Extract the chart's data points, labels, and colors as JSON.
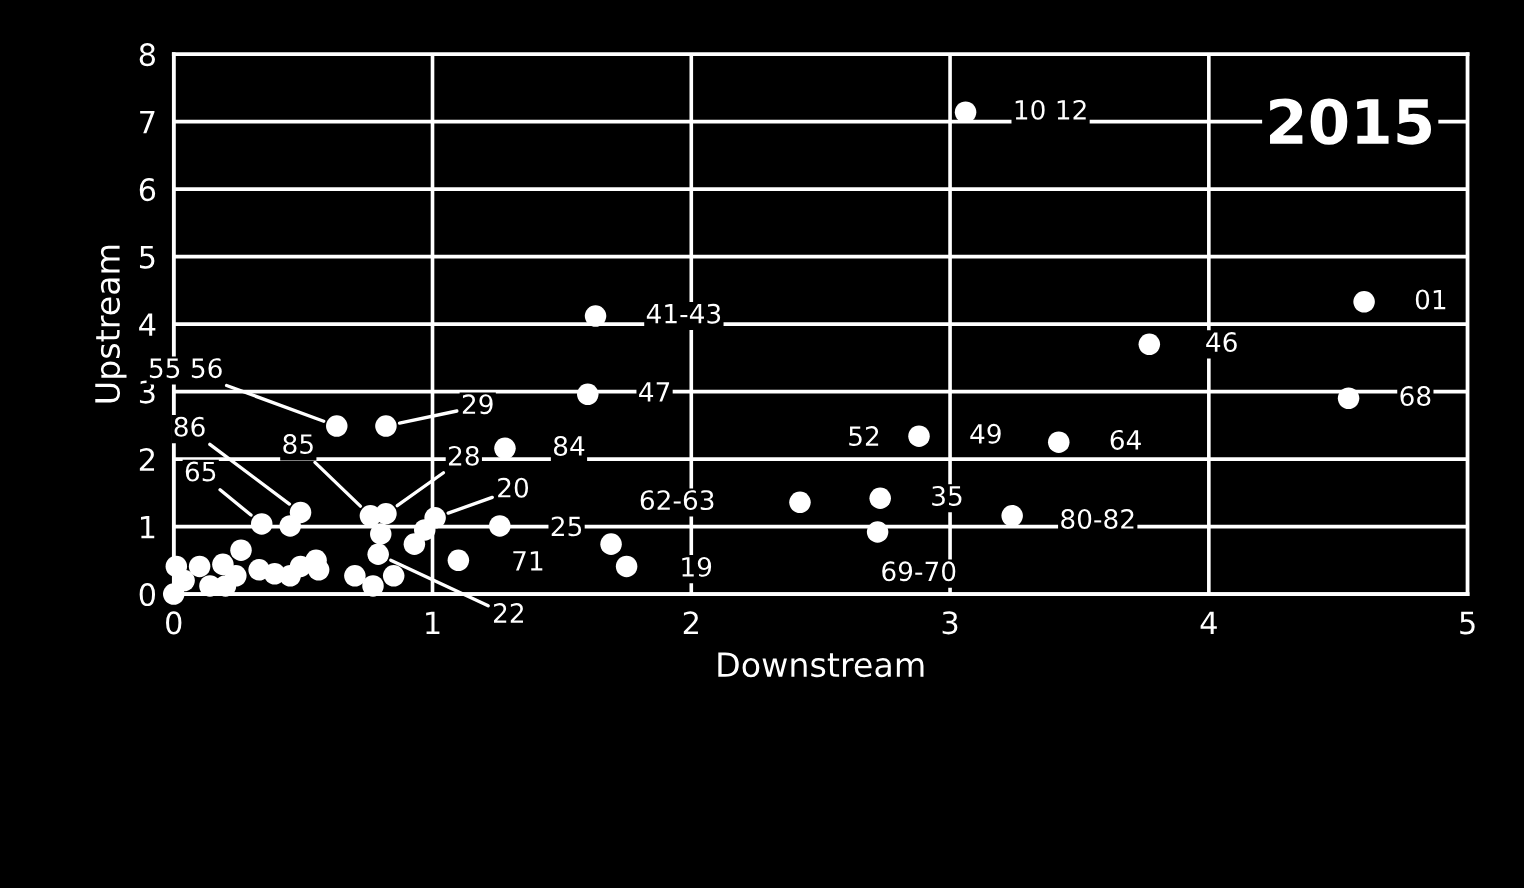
{
  "chart_data": {
    "type": "scatter",
    "title": "2015",
    "xlabel": "Downstream",
    "ylabel": "Upstream",
    "xlim": [
      0,
      5
    ],
    "ylim": [
      0,
      8
    ],
    "xticks": [
      0,
      1,
      2,
      3,
      4,
      5
    ],
    "yticks": [
      0,
      1,
      2,
      3,
      4,
      5,
      6,
      7,
      8
    ],
    "grid": true,
    "marker": "circle",
    "series": [
      {
        "color": "#ffffff",
        "x": [
          3.06,
          4.6,
          3.77,
          4.54,
          1.63,
          1.6,
          1.28,
          2.88,
          3.42,
          2.42,
          2.73,
          3.24,
          2.72,
          1.69,
          1.75,
          1.26,
          1.1,
          1.01,
          0.63,
          0.82,
          0.49,
          0.34,
          0.76,
          0.82,
          0.79,
          0.01,
          0.0,
          0.04,
          0.1,
          0.14,
          0.19,
          0.2,
          0.26,
          0.24,
          0.33,
          0.39,
          0.45,
          0.49,
          0.55,
          0.56,
          0.7,
          0.77,
          0.85,
          0.8,
          0.93,
          0.97,
          0.45
        ],
        "values": [
          7.14,
          4.33,
          3.7,
          2.9,
          4.12,
          2.96,
          2.16,
          2.34,
          2.25,
          1.36,
          1.42,
          1.16,
          0.92,
          0.74,
          0.41,
          1.01,
          0.5,
          1.13,
          2.49,
          2.49,
          1.21,
          1.04,
          1.16,
          1.19,
          0.59,
          0.41,
          0.0,
          0.2,
          0.41,
          0.12,
          0.44,
          0.12,
          0.65,
          0.27,
          0.36,
          0.3,
          0.27,
          0.41,
          0.5,
          0.36,
          0.27,
          0.12,
          0.27,
          0.89,
          0.74,
          0.95,
          1.01
        ]
      }
    ],
    "annotations": [
      {
        "text": "10 12",
        "x": 3.06,
        "y": 7.14
      },
      {
        "text": "01",
        "x": 4.6,
        "y": 4.33
      },
      {
        "text": "46",
        "x": 3.77,
        "y": 3.7
      },
      {
        "text": "68",
        "x": 4.54,
        "y": 2.9
      },
      {
        "text": "41-43",
        "x": 1.63,
        "y": 4.12
      },
      {
        "text": "47",
        "x": 1.6,
        "y": 2.96
      },
      {
        "text": "84",
        "x": 1.28,
        "y": 2.16
      },
      {
        "text": "49",
        "x": 2.88,
        "y": 2.34
      },
      {
        "text": "64",
        "x": 3.42,
        "y": 2.25
      },
      {
        "text": "52",
        "x": 2.42,
        "y": 1.36
      },
      {
        "text": "35",
        "x": 2.73,
        "y": 1.42
      },
      {
        "text": "80-82",
        "x": 3.24,
        "y": 1.16
      },
      {
        "text": "69-70",
        "x": 2.72,
        "y": 0.92
      },
      {
        "text": "62-63",
        "x": 1.69,
        "y": 0.74
      },
      {
        "text": "19",
        "x": 1.75,
        "y": 0.41
      },
      {
        "text": "25",
        "x": 1.26,
        "y": 1.01
      },
      {
        "text": "71",
        "x": 1.1,
        "y": 0.5
      },
      {
        "text": "20",
        "x": 1.01,
        "y": 1.13
      },
      {
        "text": "55 56",
        "x": 0.63,
        "y": 2.49
      },
      {
        "text": "29",
        "x": 0.82,
        "y": 2.49
      },
      {
        "text": "86",
        "x": 0.49,
        "y": 1.21
      },
      {
        "text": "65",
        "x": 0.34,
        "y": 1.04
      },
      {
        "text": "85",
        "x": 0.76,
        "y": 1.16
      },
      {
        "text": "28",
        "x": 0.82,
        "y": 1.19
      },
      {
        "text": "22",
        "x": 0.79,
        "y": 0.59
      }
    ]
  }
}
